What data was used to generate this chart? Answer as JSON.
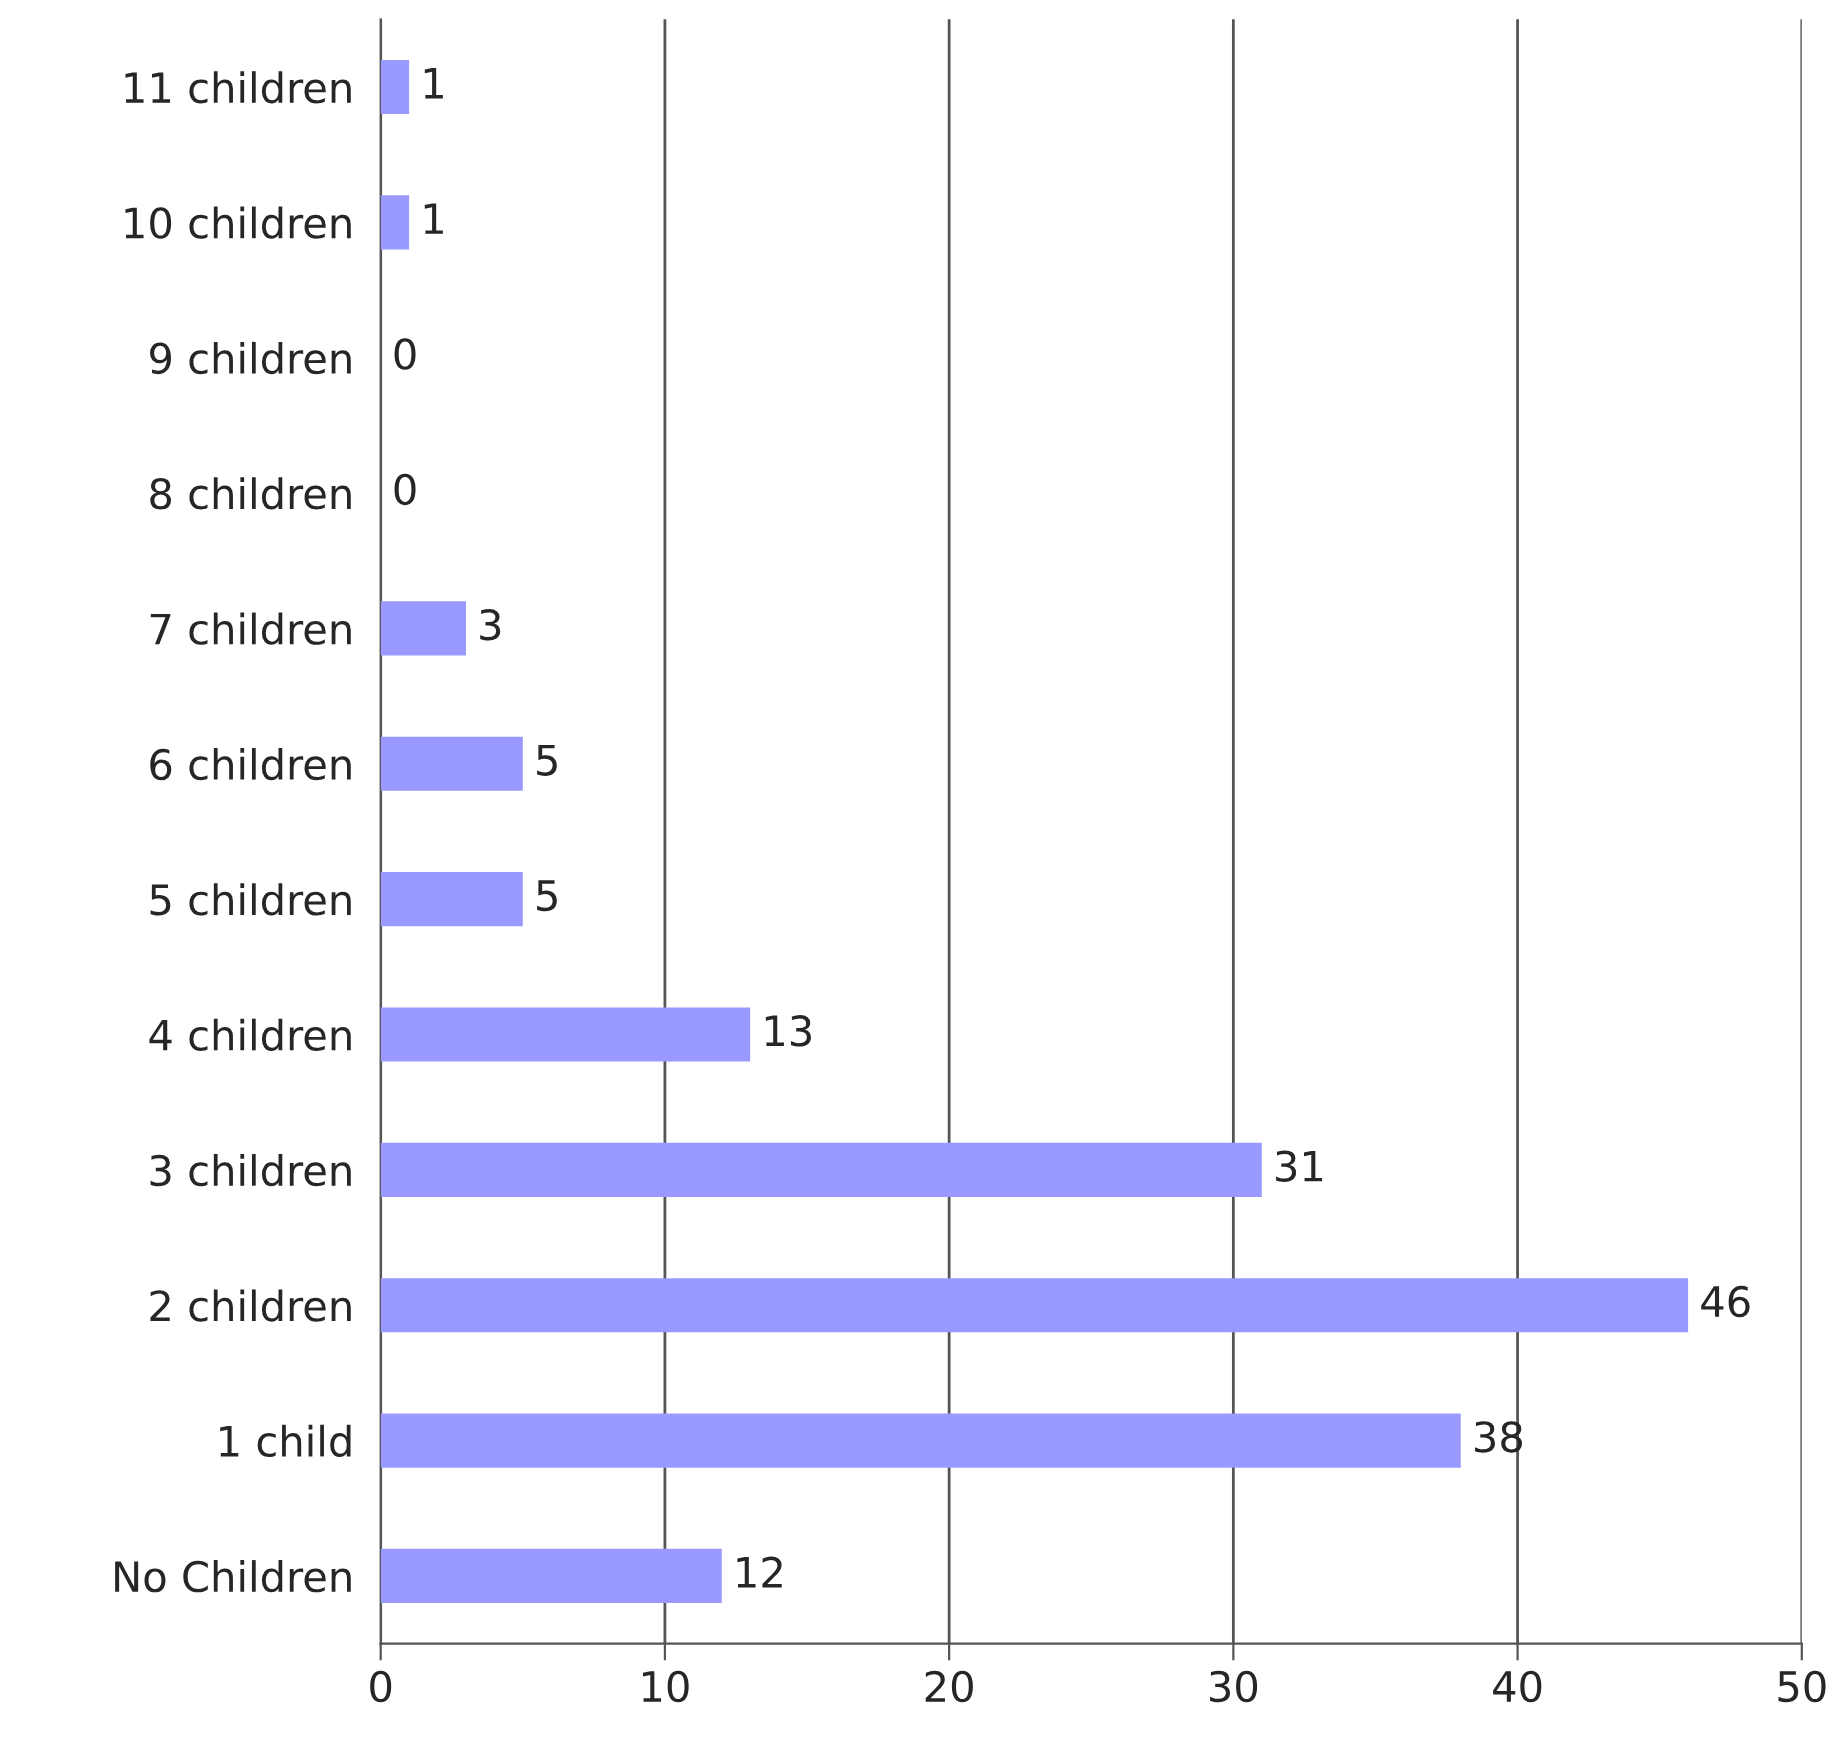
{
  "chart_data": {
    "type": "bar",
    "orientation": "horizontal",
    "categories": [
      "11 children",
      "10 children",
      "9 children",
      "8 children",
      "7 children",
      "6 children",
      "5 children",
      "4 children",
      "3 children",
      "2 children",
      "1 child",
      "No Children"
    ],
    "values": [
      1,
      1,
      0,
      0,
      3,
      5,
      5,
      13,
      31,
      46,
      38,
      12
    ],
    "color": "#9999ff",
    "xlim": [
      0,
      50
    ],
    "xticks": [
      0,
      10,
      20,
      30,
      40,
      50
    ],
    "grid": "x",
    "data_labels": true
  }
}
